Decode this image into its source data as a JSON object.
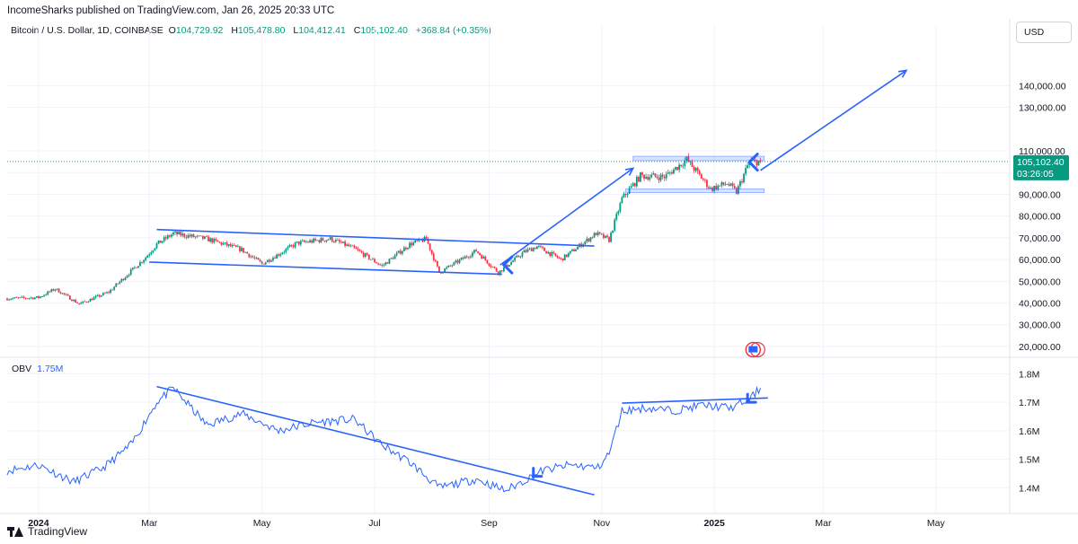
{
  "header": {
    "published": "IncomeSharks published on TradingView.com, Jan 26, 2025 20:33 UTC"
  },
  "symbol": {
    "name": "Bitcoin / U.S. Dollar, 1D, COINBASE",
    "o_label": "O",
    "o": "104,729.92",
    "h_label": "H",
    "h": "105,478.80",
    "l_label": "L",
    "l": "104,412.41",
    "c_label": "C",
    "c": "105,102.40",
    "change": "+368.84 (+0.35%)"
  },
  "currency": "USD",
  "last_price": {
    "price": "105,102.40",
    "countdown": "03:26:05"
  },
  "obv": {
    "label": "OBV",
    "value": "1.75M"
  },
  "footer": {
    "brand": "TradingView"
  },
  "colors": {
    "up": "#089981",
    "down": "#f23645",
    "accent": "#2962ff",
    "grid": "#f0f3fa"
  },
  "chart_data": [
    {
      "type": "line",
      "title": "Bitcoin / U.S. Dollar, 1D, COINBASE",
      "style": "candlestick",
      "ylim": [
        15000,
        160000
      ],
      "yticks": [
        "20,000.00",
        "30,000.00",
        "40,000.00",
        "50,000.00",
        "60,000.00",
        "70,000.00",
        "80,000.00",
        "90,000.00",
        "100,000.00",
        "110,000.00",
        "130,000.00",
        "140,000.00"
      ],
      "yticks_values": [
        20000,
        30000,
        40000,
        50000,
        60000,
        70000,
        80000,
        90000,
        100000,
        110000,
        130000,
        140000
      ],
      "xticks": [
        "2024",
        "Mar",
        "May",
        "Jul",
        "Sep",
        "Nov",
        "2025",
        "Mar",
        "May"
      ],
      "x": [
        "2023-12-15",
        "2024-01-01",
        "2024-01-10",
        "2024-01-23",
        "2024-02-08",
        "2024-02-28",
        "2024-03-05",
        "2024-03-14",
        "2024-04-01",
        "2024-04-20",
        "2024-05-01",
        "2024-05-20",
        "2024-06-07",
        "2024-06-20",
        "2024-07-05",
        "2024-07-20",
        "2024-07-29",
        "2024-08-05",
        "2024-08-25",
        "2024-09-06",
        "2024-09-20",
        "2024-09-27",
        "2024-10-10",
        "2024-10-29",
        "2024-11-05",
        "2024-11-12",
        "2024-11-22",
        "2024-12-05",
        "2024-12-17",
        "2024-12-30",
        "2025-01-08",
        "2025-01-13",
        "2025-01-20",
        "2025-01-26"
      ],
      "y": [
        42000,
        42500,
        46500,
        39500,
        45000,
        61000,
        67000,
        72000,
        69500,
        64500,
        58000,
        67500,
        69500,
        65000,
        57000,
        67000,
        69500,
        54000,
        64000,
        54000,
        63500,
        66000,
        60000,
        72000,
        69000,
        88000,
        98500,
        98000,
        106000,
        92500,
        95000,
        91000,
        105000,
        105102
      ],
      "trendlines_note": "channel, projection arrows, support and resistance boxes drawn by author",
      "last_price": 105102.4
    },
    {
      "type": "line",
      "title": "OBV",
      "ylim": [
        1.36,
        1.82
      ],
      "yticks": [
        "1.4M",
        "1.5M",
        "1.6M",
        "1.7M",
        "1.8M"
      ],
      "yticks_values": [
        1.4,
        1.5,
        1.6,
        1.7,
        1.8
      ],
      "x": [
        "2023-12-15",
        "2024-01-01",
        "2024-01-20",
        "2024-02-05",
        "2024-02-20",
        "2024-03-05",
        "2024-03-14",
        "2024-04-01",
        "2024-04-20",
        "2024-05-10",
        "2024-05-30",
        "2024-06-20",
        "2024-07-05",
        "2024-07-20",
        "2024-08-05",
        "2024-08-25",
        "2024-09-10",
        "2024-09-30",
        "2024-10-15",
        "2024-10-30",
        "2024-11-05",
        "2024-11-12",
        "2024-11-25",
        "2024-12-10",
        "2024-12-25",
        "2025-01-10",
        "2025-01-20",
        "2025-01-26"
      ],
      "y": [
        1.46,
        1.48,
        1.42,
        1.47,
        1.55,
        1.7,
        1.75,
        1.62,
        1.66,
        1.6,
        1.63,
        1.64,
        1.55,
        1.49,
        1.4,
        1.43,
        1.39,
        1.46,
        1.48,
        1.47,
        1.52,
        1.67,
        1.68,
        1.67,
        1.69,
        1.68,
        1.71,
        1.75
      ],
      "unit": "M"
    }
  ]
}
